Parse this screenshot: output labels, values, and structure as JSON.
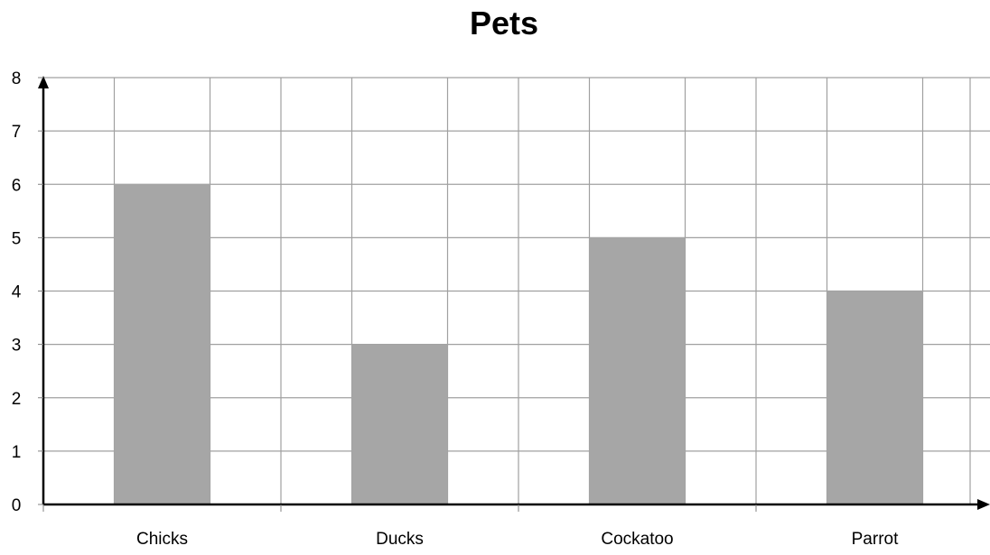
{
  "chart_data": {
    "type": "bar",
    "title": "Pets",
    "xlabel": "",
    "ylabel": "",
    "categories": [
      "Chicks",
      "Ducks",
      "Cockatoo",
      "Parrot"
    ],
    "values": [
      6,
      3,
      5,
      4
    ],
    "ylim": [
      0,
      8
    ],
    "yticks": [
      "0",
      "1",
      "2",
      "3",
      "4",
      "5",
      "6",
      "7",
      "8"
    ],
    "grid": true,
    "legend": "none",
    "bar_color": "#a6a6a6",
    "grid_color": "#a0a0a0",
    "axis_color": "#000000"
  }
}
